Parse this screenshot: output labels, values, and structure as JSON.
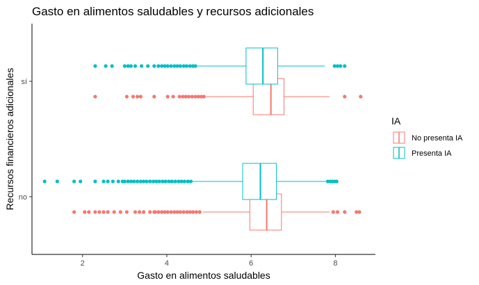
{
  "chart_data": {
    "type": "boxplot",
    "orientation": "horizontal",
    "title": "Gasto en alimentos saludables y recursos adicionales",
    "xlabel": "Gasto en alimentos saludables",
    "ylabel": "Recursos financieros adicionales",
    "xlim": [
      0.8,
      8.95
    ],
    "x_ticks": [
      2,
      4,
      6,
      8
    ],
    "x_tick_labels": [
      "2",
      "4",
      "6",
      "8"
    ],
    "categories": [
      "no",
      "sí"
    ],
    "grid": false,
    "legend": {
      "title": "IA",
      "position": "right",
      "entries": [
        "No presenta IA",
        "Presenta IA"
      ]
    },
    "series": [
      {
        "name": "No presenta IA",
        "color": "#F8766D",
        "boxes": [
          {
            "category": "no",
            "whisker_low": 4.85,
            "q1": 5.97,
            "median": 6.37,
            "q3": 6.72,
            "whisker_high": 7.86,
            "outliers": [
              1.8,
              2.05,
              2.15,
              2.3,
              2.4,
              2.5,
              2.6,
              2.75,
              2.9,
              3.05,
              3.25,
              3.35,
              3.45,
              3.6,
              3.7,
              3.72,
              3.8,
              3.88,
              3.95,
              4.02,
              4.1,
              4.18,
              4.25,
              4.32,
              4.4,
              4.48,
              4.55,
              4.62,
              4.7,
              4.78,
              7.95,
              8.05,
              8.22,
              8.5,
              8.57
            ]
          },
          {
            "category": "sí",
            "whisker_low": 4.93,
            "q1": 6.05,
            "median": 6.47,
            "q3": 6.78,
            "whisker_high": 7.86,
            "outliers": [
              2.3,
              3.05,
              3.2,
              3.3,
              3.38,
              3.7,
              4.02,
              4.15,
              4.3,
              4.38,
              4.45,
              4.52,
              4.6,
              4.68,
              4.75,
              4.82,
              4.88,
              8.22,
              8.6
            ]
          }
        ]
      },
      {
        "name": "Presenta IA",
        "color": "#00BFC4",
        "boxes": [
          {
            "category": "no",
            "whisker_low": 4.6,
            "q1": 5.8,
            "median": 6.22,
            "q3": 6.6,
            "whisker_high": 7.78,
            "outliers": [
              1.1,
              1.4,
              1.8,
              1.95,
              2.3,
              2.5,
              2.6,
              2.72,
              2.85,
              2.95,
              3.0,
              3.08,
              3.15,
              3.22,
              3.3,
              3.38,
              3.45,
              3.52,
              3.6,
              3.68,
              3.75,
              3.82,
              3.9,
              3.97,
              4.05,
              4.12,
              4.2,
              4.28,
              4.35,
              4.42,
              4.5,
              4.57,
              7.82,
              7.88,
              7.93,
              7.98,
              8.03
            ]
          },
          {
            "category": "sí",
            "whisker_low": 4.73,
            "q1": 5.88,
            "median": 6.28,
            "q3": 6.63,
            "whisker_high": 7.75,
            "outliers": [
              2.3,
              2.55,
              2.7,
              3.0,
              3.08,
              3.15,
              3.25,
              3.4,
              3.55,
              3.7,
              3.8,
              3.88,
              3.95,
              4.02,
              4.1,
              4.18,
              4.25,
              4.32,
              4.4,
              4.47,
              4.55,
              4.62,
              4.68,
              7.98,
              8.05,
              8.12,
              8.22
            ]
          }
        ]
      }
    ]
  }
}
